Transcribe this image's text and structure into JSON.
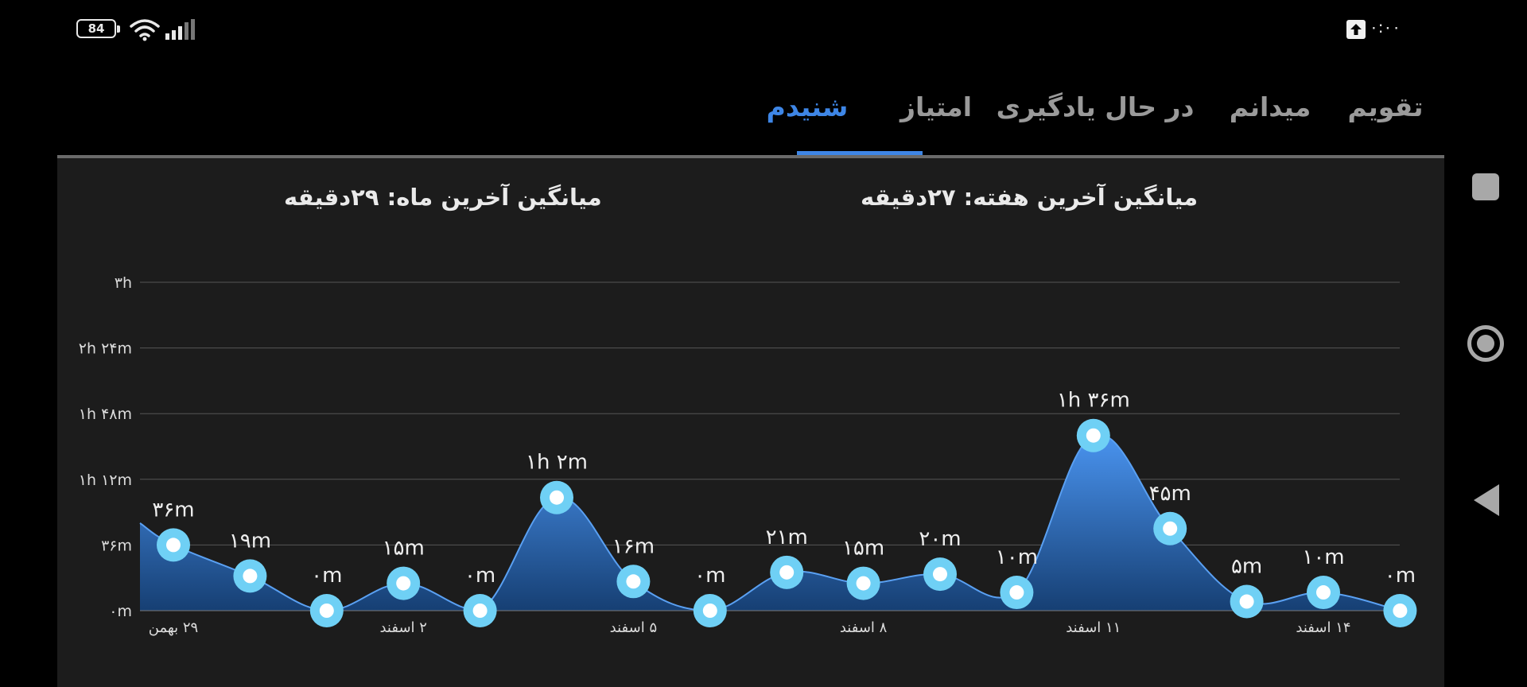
{
  "status_bar": {
    "battery": "84",
    "clock": "۰:۰۰",
    "icons": [
      "wifi-icon",
      "signal-icon",
      "upload-icon",
      "battery-icon"
    ]
  },
  "tabs": [
    {
      "label": "تقویم",
      "active": false
    },
    {
      "label": "میدانم",
      "active": false
    },
    {
      "label": "در حال یادگیری",
      "active": false
    },
    {
      "label": "امتیاز",
      "active": false
    },
    {
      "label": "شنیدم",
      "active": true
    }
  ],
  "summary": {
    "week_avg": "میانگین آخرین هفته: ۲۷دقیقه",
    "month_avg": "میانگین آخرین ماه: ۲۹دقیقه"
  },
  "colors": {
    "accent": "#3e86e6",
    "area_top": "#4a94f0",
    "area_bottom": "#163f73",
    "point_fill": "#6fd0f5"
  },
  "nav": {
    "icons": [
      "recent-apps-icon",
      "home-icon",
      "back-icon"
    ]
  },
  "chart_data": {
    "type": "area",
    "y_unit": "minutes",
    "ylim": [
      0,
      180
    ],
    "yticks": [
      0,
      36,
      72,
      108,
      144,
      180
    ],
    "ytick_labels": [
      "۰m",
      "۳۶m",
      "۱h ۱۲m",
      "۱h ۴۸m",
      "۲h ۲۴m",
      "۳h"
    ],
    "grid": true,
    "start_value": 48,
    "points": [
      {
        "value": 36,
        "label": "۳۶m",
        "xlabel": "۲۹ بهمن"
      },
      {
        "value": 19,
        "label": "۱۹m",
        "xlabel": ""
      },
      {
        "value": 0,
        "label": "۰m",
        "xlabel": ""
      },
      {
        "value": 15,
        "label": "۱۵m",
        "xlabel": "۲ اسفند"
      },
      {
        "value": 0,
        "label": "۰m",
        "xlabel": ""
      },
      {
        "value": 62,
        "label": "۱h ۲m",
        "xlabel": ""
      },
      {
        "value": 16,
        "label": "۱۶m",
        "xlabel": "۵ اسفند"
      },
      {
        "value": 0,
        "label": "۰m",
        "xlabel": ""
      },
      {
        "value": 21,
        "label": "۲۱m",
        "xlabel": ""
      },
      {
        "value": 15,
        "label": "۱۵m",
        "xlabel": "۸ اسفند"
      },
      {
        "value": 20,
        "label": "۲۰m",
        "xlabel": ""
      },
      {
        "value": 10,
        "label": "۱۰m",
        "xlabel": ""
      },
      {
        "value": 96,
        "label": "۱h ۳۶m",
        "xlabel": "۱۱ اسفند"
      },
      {
        "value": 45,
        "label": "۴۵m",
        "xlabel": ""
      },
      {
        "value": 5,
        "label": "۵m",
        "xlabel": ""
      },
      {
        "value": 10,
        "label": "۱۰m",
        "xlabel": "۱۴ اسفند"
      },
      {
        "value": 0,
        "label": "۰m",
        "xlabel": ""
      }
    ]
  }
}
